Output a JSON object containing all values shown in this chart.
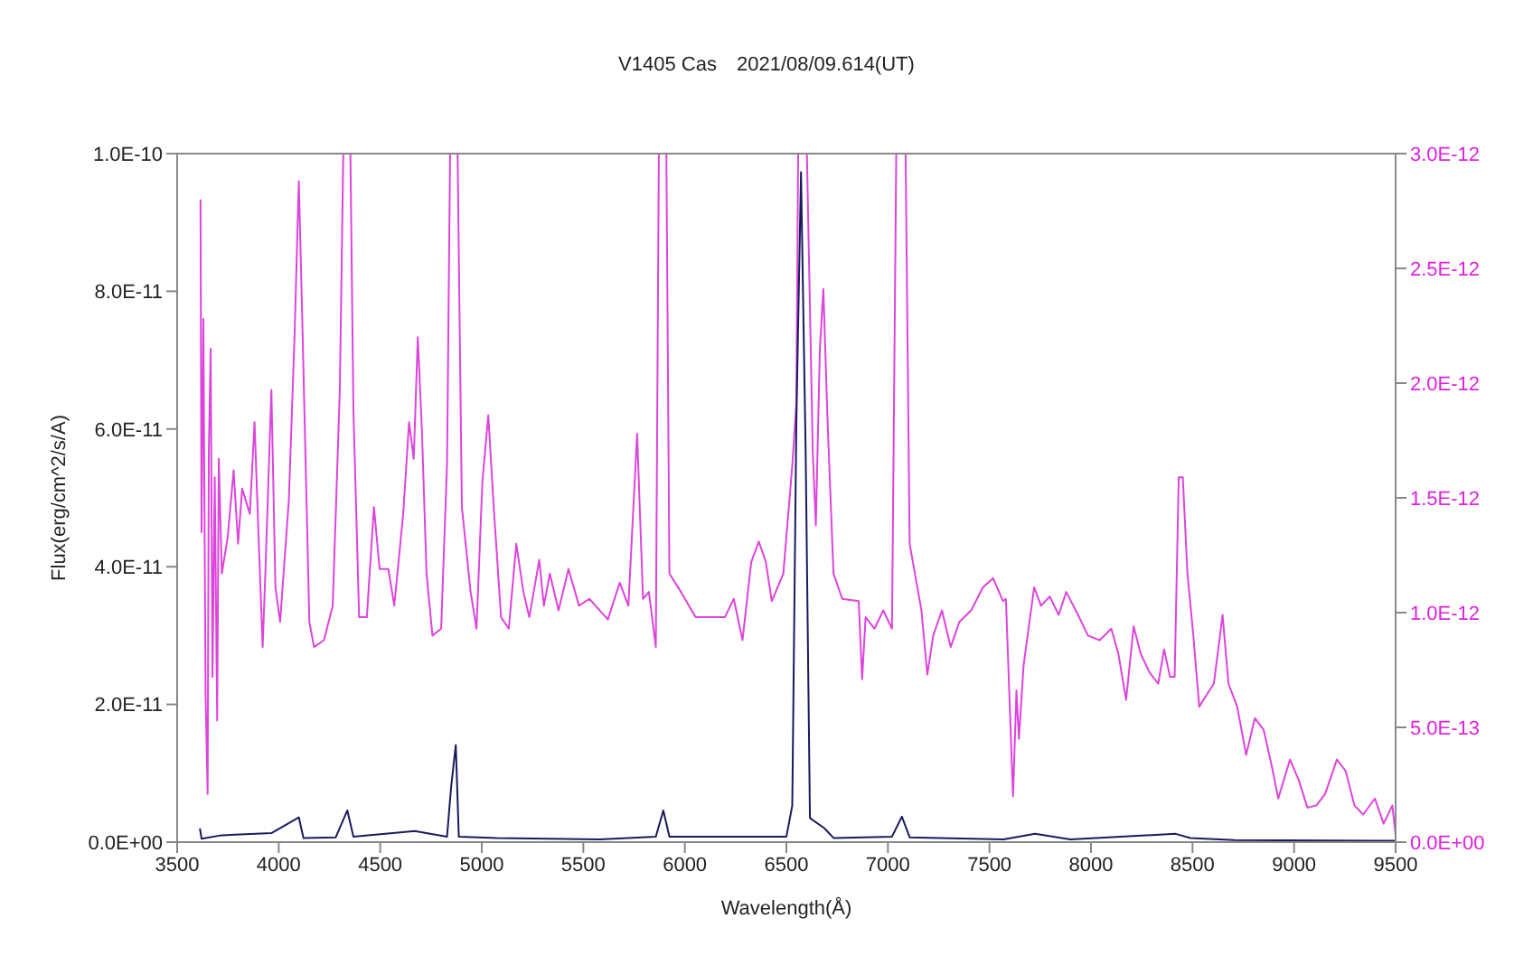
{
  "chart_data": {
    "type": "line",
    "title": "V1405 Cas　2021/08/09.614(UT)",
    "xlabel": "Wavelength(Å)",
    "ylabel": "Flux(erg/cm^2/s/A)",
    "xlim": [
      3500,
      9500
    ],
    "xticks": [
      3500,
      4000,
      4500,
      5000,
      5500,
      6000,
      6500,
      7000,
      7500,
      8000,
      8500,
      9000,
      9500
    ],
    "ylim": [
      0,
      1e-10
    ],
    "yticks": [
      {
        "value": 0,
        "label": "0.0E+00"
      },
      {
        "value": 2e-11,
        "label": "2.0E-11"
      },
      {
        "value": 4e-11,
        "label": "4.0E-11"
      },
      {
        "value": 6e-11,
        "label": "6.0E-11"
      },
      {
        "value": 8e-11,
        "label": "8.0E-11"
      },
      {
        "value": 1e-10,
        "label": "1.0E-10"
      }
    ],
    "y2lim": [
      0,
      3e-12
    ],
    "y2ticks": [
      {
        "value": 0,
        "label": "0.0E+00"
      },
      {
        "value": 5e-13,
        "label": "5.0E-13"
      },
      {
        "value": 1e-12,
        "label": "1.0E-12"
      },
      {
        "value": 1.5e-12,
        "label": "1.5E-12"
      },
      {
        "value": 2e-12,
        "label": "2.0E-12"
      },
      {
        "value": 2.5e-12,
        "label": "2.5E-12"
      },
      {
        "value": 3e-12,
        "label": "3.0E-12"
      }
    ],
    "marker": "none",
    "line_style": "solid",
    "series": [
      {
        "color": "#dd44dd",
        "axis": "y2",
        "x": [
          3615,
          3620,
          3629,
          3640,
          3650,
          3656,
          3665,
          3674,
          3685,
          3697,
          3705,
          3720,
          3749,
          3778,
          3800,
          3820,
          3858,
          3881,
          3901,
          3921,
          3935,
          3964,
          3984,
          4007,
          4050,
          4079,
          4099,
          4116,
          4151,
          4174,
          4223,
          4266,
          4301,
          4318,
          4353,
          4368,
          4396,
          4434,
          4469,
          4497,
          4540,
          4569,
          4613,
          4642,
          4665,
          4685,
          4705,
          4728,
          4757,
          4800,
          4829,
          4844,
          4881,
          4902,
          4945,
          4974,
          5003,
          5032,
          5061,
          5095,
          5133,
          5170,
          5205,
          5234,
          5283,
          5306,
          5335,
          5378,
          5427,
          5479,
          5530,
          5580,
          5621,
          5679,
          5722,
          5765,
          5794,
          5823,
          5857,
          5872,
          5909,
          5924,
          5981,
          6053,
          6197,
          6241,
          6284,
          6327,
          6364,
          6399,
          6428,
          6485,
          6529,
          6549,
          6558,
          6601,
          6630,
          6645,
          6665,
          6682,
          6703,
          6732,
          6775,
          6856,
          6873,
          6890,
          6934,
          6977,
          7020,
          7041,
          7087,
          7107,
          7165,
          7194,
          7223,
          7266,
          7309,
          7352,
          7410,
          7468,
          7518,
          7567,
          7581,
          7616,
          7633,
          7645,
          7668,
          7720,
          7754,
          7797,
          7841,
          7878,
          7942,
          7985,
          8043,
          8100,
          8135,
          8173,
          8210,
          8245,
          8288,
          8331,
          8360,
          8389,
          8412,
          8432,
          8452,
          8475,
          8504,
          8533,
          8568,
          8605,
          8648,
          8677,
          8720,
          8764,
          8807,
          8850,
          8893,
          8922,
          8980,
          9023,
          9066,
          9110,
          9153,
          9211,
          9254,
          9297,
          9340,
          9398,
          9441,
          9484,
          9500
        ],
        "values": [
          2.8e-12,
          1.35e-12,
          2.28e-12,
          6.4e-13,
          2.1e-13,
          1.7e-12,
          2.15e-12,
          7.2e-13,
          1.59e-12,
          5.3e-13,
          1.67e-12,
          1.17e-12,
          1.33e-12,
          1.62e-12,
          1.3e-12,
          1.54e-12,
          1.43e-12,
          1.83e-12,
          1.33e-12,
          8.5e-13,
          1.19e-12,
          1.97e-12,
          1.11e-12,
          9.6e-13,
          1.49e-12,
          2.23e-12,
          2.88e-12,
          2.28e-12,
          9.6e-13,
          8.5e-13,
          8.8e-13,
          1.03e-12,
          1.97e-12,
          3e-12,
          3e-12,
          1.88e-12,
          9.8e-13,
          9.8e-13,
          1.46e-12,
          1.19e-12,
          1.19e-12,
          1.03e-12,
          1.43e-12,
          1.83e-12,
          1.67e-12,
          2.2e-12,
          1.8e-12,
          1.17e-12,
          9e-13,
          9.3e-13,
          1.65e-12,
          3e-12,
          3e-12,
          1.46e-12,
          1.09e-12,
          9.3e-13,
          1.57e-12,
          1.86e-12,
          1.43e-12,
          9.8e-13,
          9.3e-13,
          1.3e-12,
          1.09e-12,
          9.8e-13,
          1.23e-12,
          1.03e-12,
          1.17e-12,
          1.01e-12,
          1.19e-12,
          1.03e-12,
          1.06e-12,
          1.01e-12,
          9.7e-13,
          1.13e-12,
          1.03e-12,
          1.78e-12,
          1.06e-12,
          1.09e-12,
          8.5e-13,
          3e-12,
          3e-12,
          1.17e-12,
          1.09e-12,
          9.8e-13,
          9.8e-13,
          1.06e-12,
          8.8e-13,
          1.22e-12,
          1.31e-12,
          1.22e-12,
          1.05e-12,
          1.17e-12,
          1.64e-12,
          1.91e-12,
          3e-12,
          3e-12,
          1.7e-12,
          1.38e-12,
          2.15e-12,
          2.41e-12,
          1.83e-12,
          1.17e-12,
          1.06e-12,
          1.05e-12,
          7.1e-13,
          9.8e-13,
          9.3e-13,
          1.01e-12,
          9.3e-13,
          3e-12,
          3e-12,
          1.3e-12,
          1.01e-12,
          7.3e-13,
          9e-13,
          1.01e-12,
          8.5e-13,
          9.6e-13,
          1.01e-12,
          1.11e-12,
          1.15e-12,
          1.05e-12,
          1.06e-12,
          2e-13,
          6.6e-13,
          4.5e-13,
          7.7e-13,
          1.11e-12,
          1.03e-12,
          1.07e-12,
          9.9e-13,
          1.09e-12,
          9.8e-13,
          9e-13,
          8.8e-13,
          9.3e-13,
          8.2e-13,
          6.2e-13,
          9.4e-13,
          8.2e-13,
          7.4e-13,
          6.9e-13,
          8.4e-13,
          7.2e-13,
          7.2e-13,
          1.59e-12,
          1.59e-12,
          1.17e-12,
          9e-13,
          5.9e-13,
          6.4e-13,
          6.9e-13,
          9.9e-13,
          6.9e-13,
          5.9e-13,
          3.8e-13,
          5.4e-13,
          4.9e-13,
          3.2e-13,
          1.9e-13,
          3.6e-13,
          2.7e-13,
          1.5e-13,
          1.6e-13,
          2.1e-13,
          3.6e-13,
          3.1e-13,
          1.6e-13,
          1.2e-13,
          1.9e-13,
          8e-14,
          1.6e-13,
          3e-14
        ]
      },
      {
        "color": "#1a1a5e",
        "x": [
          3612,
          3620,
          3720,
          3964,
          4099,
          4122,
          4281,
          4338,
          4368,
          4670,
          4829,
          4849,
          4872,
          4887,
          5075,
          5580,
          5857,
          5894,
          5924,
          6500,
          6529,
          6549,
          6572,
          6595,
          6616,
          6688,
          6732,
          7020,
          7069,
          7107,
          7569,
          7725,
          7898,
          8417,
          8490,
          8706,
          9500
        ],
        "values": [
          2e-12,
          5e-13,
          1e-12,
          1.3e-12,
          3.6e-12,
          6e-13,
          7e-13,
          4.6e-12,
          8e-13,
          1.6e-12,
          8e-13,
          8e-12,
          1.41e-11,
          8e-13,
          6e-13,
          4e-13,
          8e-13,
          4.6e-12,
          8e-13,
          8e-13,
          5.3e-12,
          6.1e-11,
          9.73e-11,
          5.65e-11,
          3.5e-12,
          2e-12,
          6e-13,
          8e-13,
          3.7e-12,
          7e-13,
          4e-13,
          1.2e-12,
          4e-13,
          1.2e-12,
          6e-13,
          3e-13,
          2e-13
        ]
      }
    ]
  }
}
